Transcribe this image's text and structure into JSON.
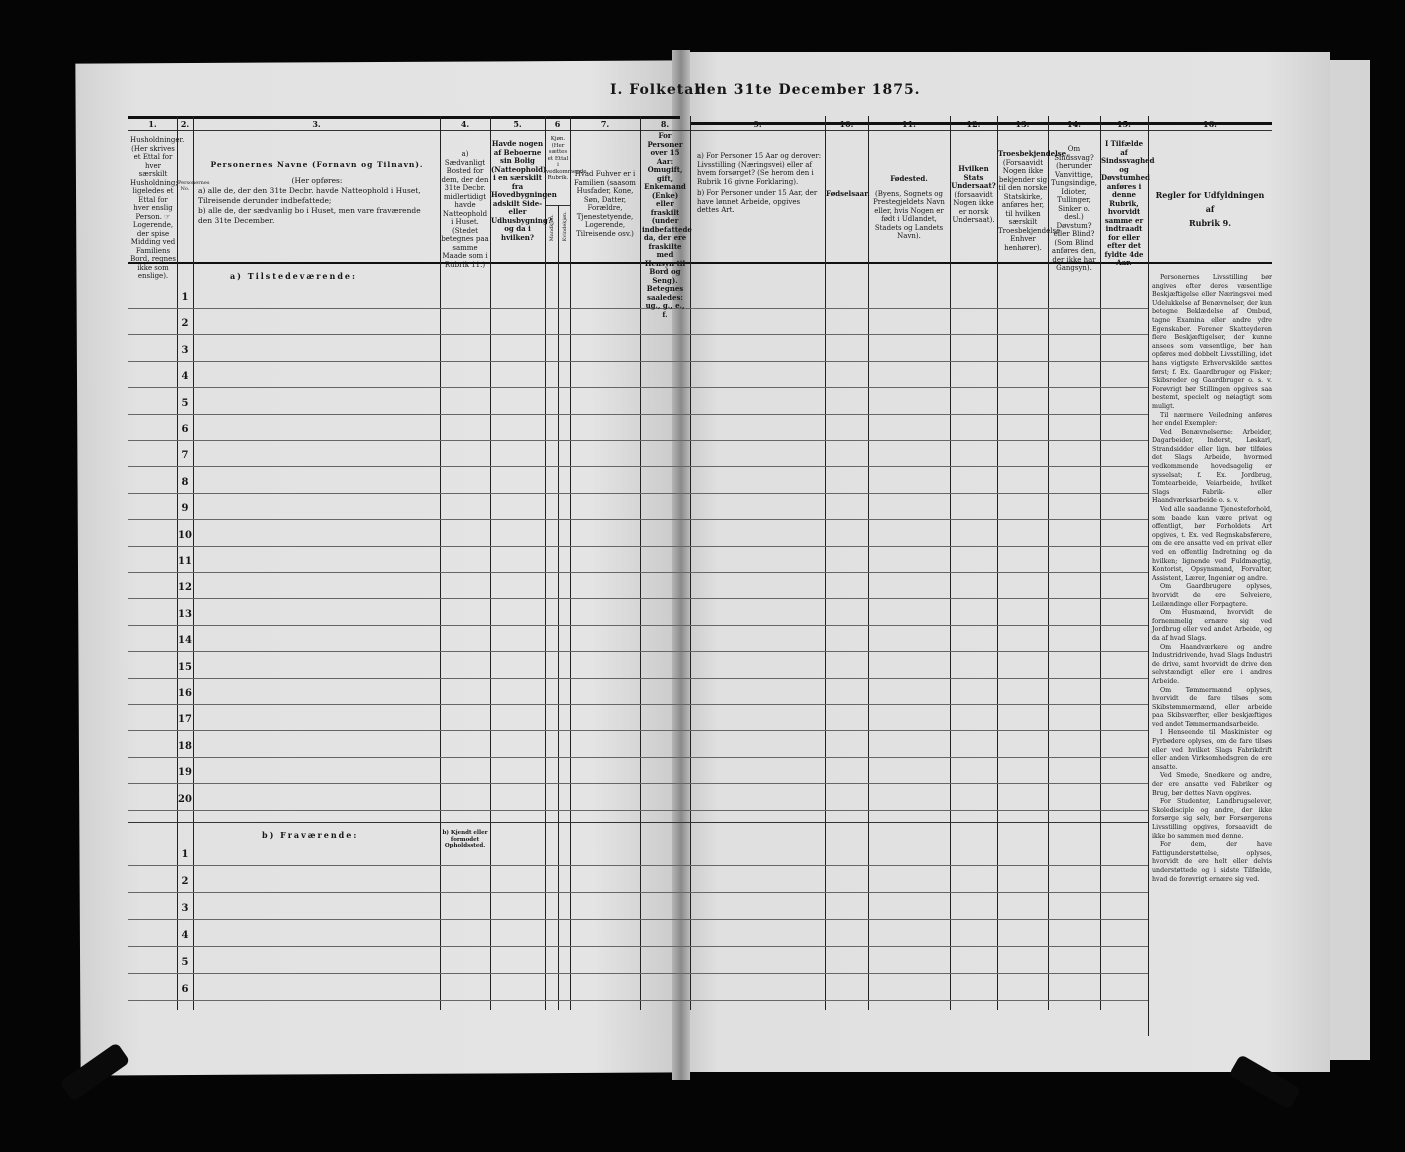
{
  "title": {
    "left": "I.  Folketal",
    "right": "den 31te December 1875."
  },
  "columns": [
    {
      "num": "1.",
      "text": "Husholdninger. (Her skrives et Ettal for hver særskilt Husholdning; ligeledes et Ettal for hver enslig Person. ☞ Logerende, der spise Midding ved Familiens Bord, regnes ikke som enslige)."
    },
    {
      "num": "2.",
      "text": "Personernes No."
    },
    {
      "num": "3.",
      "title": "Personernes Navne (Fornavn og Tilnavn).",
      "text": "(Her opføres:",
      "a": "a) alle de, der den 31te Decbr. havde Natteophold i Huset, Tilreisende derunder indbefattede;",
      "b": "b) alle de, der sædvanlig bo i Huset, men vare fraværende den 31te December."
    },
    {
      "num": "4.",
      "text": "a) Sædvanligt Bosted for dem, der den 31te Decbr. midlertidigt havde Natteophold i Huset. (Stedet betegnes paa samme Maade som i Rubrik 11.)"
    },
    {
      "num": "5.",
      "text": "Havde nogen af Beboerne sin Bolig (Natteophold) i en særskilt fra Hovedbygningen adskilt Side- eller Udhusbygning? og da i hvilken?"
    },
    {
      "num": "6",
      "text": "Kjøn. (Her sættes et Ettal i vedkommende Rubrik.",
      "sub": [
        "Mandkjøn.",
        "Kvindekjøn."
      ]
    },
    {
      "num": "7.",
      "text": "Hvad Fuhver er i Familien (saasom Husfader, Kone, Søn, Datter, Forældre, Tjenestetyende, Logerende, Tilreisende osv.)"
    },
    {
      "num": "8.",
      "text": "For Personer over 15 Aar: Omugift, gift, Enkemand (Enke) eller fraskilt (under indbefattede da, der ere fraskilte med Hensyn til Bord og Seng). Betegnes saaledes: ug., g., e., f."
    },
    {
      "num": "9.",
      "a": "a) For Personer 15 Aar og derover: Livsstilling (Næringsvei) eller af hvem forsørget? (Se herom den i Rubrik 16 givne Forklaring).",
      "b": "b) For Personer under 15 Aar, der have lønnet Arbeide, opgives dettes Art."
    },
    {
      "num": "10.",
      "text": "Fødselsaar."
    },
    {
      "num": "11.",
      "title": "Fødested.",
      "text": "(Byens, Sognets og Prestegjeldets Navn eller, hvis Nogen er født i Udlandet, Stadets og Landets Navn)."
    },
    {
      "num": "12.",
      "title": "Hvilken Stats Undersaat?",
      "text": "(forsaavidt Nogen ikke er norsk Undersaat)."
    },
    {
      "num": "13.",
      "title": "Troesbekjendelse.",
      "text": "(Forsaavidt Nogen ikke bekjender sig til den norske Statskirke, anføres her, til hvilken særskilt Troesbekjendelse Enhver henhører)."
    },
    {
      "num": "14.",
      "text": "Om Sindssvag? (herunder Vanvittige, Tungsindige, Idioter, Tullinger, Sinker o. desl.) Døvstum? eller Blind? (Som Blind anføres den, der ikke har Gangsyn)."
    },
    {
      "num": "15.",
      "text": "I Tilfælde af Sindssvaghed og Døvstumhed anføres i denne Rubrik, hvorvidt samme er indtraadt for eller efter det fyldte 4de Aar."
    },
    {
      "num": "16.",
      "title": "Regler for Udfyldningen",
      "mid": "af",
      "text": "Rubrik 9."
    }
  ],
  "sections": {
    "present": "a) Tilstedeværende:",
    "absent": "b) Fraværende:",
    "absent_col4": "b) Kjendt eller formodet Opholdssted."
  },
  "present_rows": [
    "1",
    "2",
    "3",
    "4",
    "5",
    "6",
    "7",
    "8",
    "9",
    "10",
    "11",
    "12",
    "13",
    "14",
    "15",
    "16",
    "17",
    "18",
    "19",
    "20"
  ],
  "absent_rows": [
    "1",
    "2",
    "3",
    "4",
    "5",
    "6"
  ],
  "rules": [
    "Personernes Livsstilling bør angives efter deres væsentlige Beskjæftigelse eller Næringsvei med Udelukkelse af Benævnelser, der kun betegne Beklædelse af Ombud, tagne Examina eller andre ydre Egenskaber. Forener Skatteyderen flere Beskjæftigelser, der kunne ansees som væsentlige, bør han opføres med dobbelt Livsstilling, idet hans vigtigste Erhvervskilde sættes først; f. Ex. Gaardbruger og Fisker; Skibsreder og Gaardbruger o. s. v. Forøvrigt bør Stillingen opgives saa bestemt, specielt og nøiagtigt som muligt.",
    "Til nærmere Veiledning anføres her endel Exempler:",
    "Ved Benævnelserne: Arbeider, Dagarbeider, Inderst, Løskarl, Strandsidder eller lign. bør tilføies det Slags Arbeide, hvormed vedkommende hovedsagelig er sysselsat; f. Ex. Jordbrug, Tomtearbeide, Veiarbeide, hvilket Slags Fabrik- eller Haandværksarbeide o. s. v.",
    "Ved alle saadanne Tjenesteforhold, som baade kan være privat og offentligt, bør Forholdets Art opgives, t. Ex. ved Regnskabsførere, om de ere ansatte ved en privat eller ved en offentlig Indretning og da hvilken; lignende ved Fuldmægtig, Kontorist, Opsynsmand, Forvalter, Assistent, Lærer, Ingeniør og andre.",
    "Om Gaardbrugere oplyses, hvorvidt de ere Selveiere, Leilændinge eller Forpagtere.",
    "Om Husmænd, hvorvidt de fornemmelig ernære sig ved Jordbrug eller ved andet Arbeide, og da af hvad Slags.",
    "Om Haandværkere og andre Industridrivende, hvad Slags Industri de drive, samt hvorvidt de drive den selvstændigt eller ere i andres Arbeide.",
    "Om Tømmermænd oplyses, hvorvidt de fare tilsøs som Skibstømmermænd, eller arbeide paa Skibsværfter, eller beskjæftiges ved andet Tømmermandsarbeide.",
    "I Henseende til Maskinister og Fyrbødere oplyses, om de fare tilsøs eller ved hvilket Slags Fabrikdrift eller anden Virksomhedsgren de ere ansatte.",
    "Ved Smede, Snedkere og andre, der ere ansatte ved Fabriker og Brug, bør dettes Navn opgives.",
    "For Studenter, Landbrugselever, Skoledisciple og andre, der ikke forsørge sig selv, bør Forsørgerens Livsstilling opgives, forsaavidt de ikke bo sammen med denne.",
    "For dem, der have Fattigunderstøttelse, oplyses, hvorvidt de ere helt eller delvis understøttede og i sidste Tilfælde, hvad de forøvrigt ernære sig ved."
  ],
  "colors": {
    "background": "#050505",
    "paper": "#dedede",
    "ink": "#161616"
  }
}
